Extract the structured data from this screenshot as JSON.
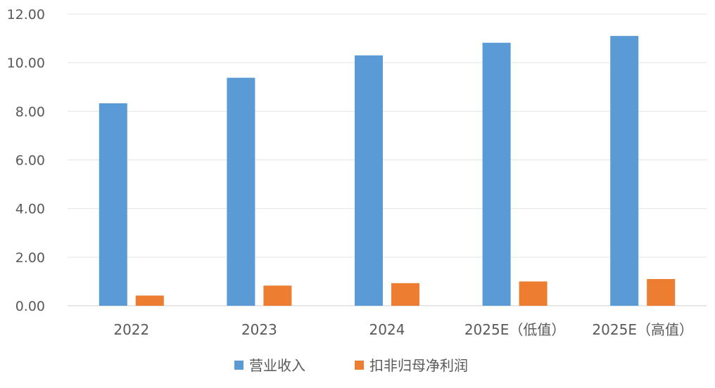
{
  "chart_data": {
    "type": "bar",
    "title": "",
    "xlabel": "",
    "ylabel": "",
    "categories": [
      "2022",
      "2023",
      "2024",
      "2025E（低值）",
      "2025E（高值）"
    ],
    "series": [
      {
        "name": "营业收入",
        "values": [
          8.33,
          9.38,
          10.3,
          10.82,
          11.1
        ],
        "color": "#5B9BD5"
      },
      {
        "name": "扣非归母净利润",
        "values": [
          0.42,
          0.83,
          0.93,
          1.0,
          1.1
        ],
        "color": "#ED7D31"
      }
    ],
    "ylim": [
      0,
      12
    ],
    "yticks": [
      "0.00",
      "2.00",
      "4.00",
      "6.00",
      "8.00",
      "10.00",
      "12.00"
    ],
    "grid": true,
    "legend_position": "bottom"
  }
}
